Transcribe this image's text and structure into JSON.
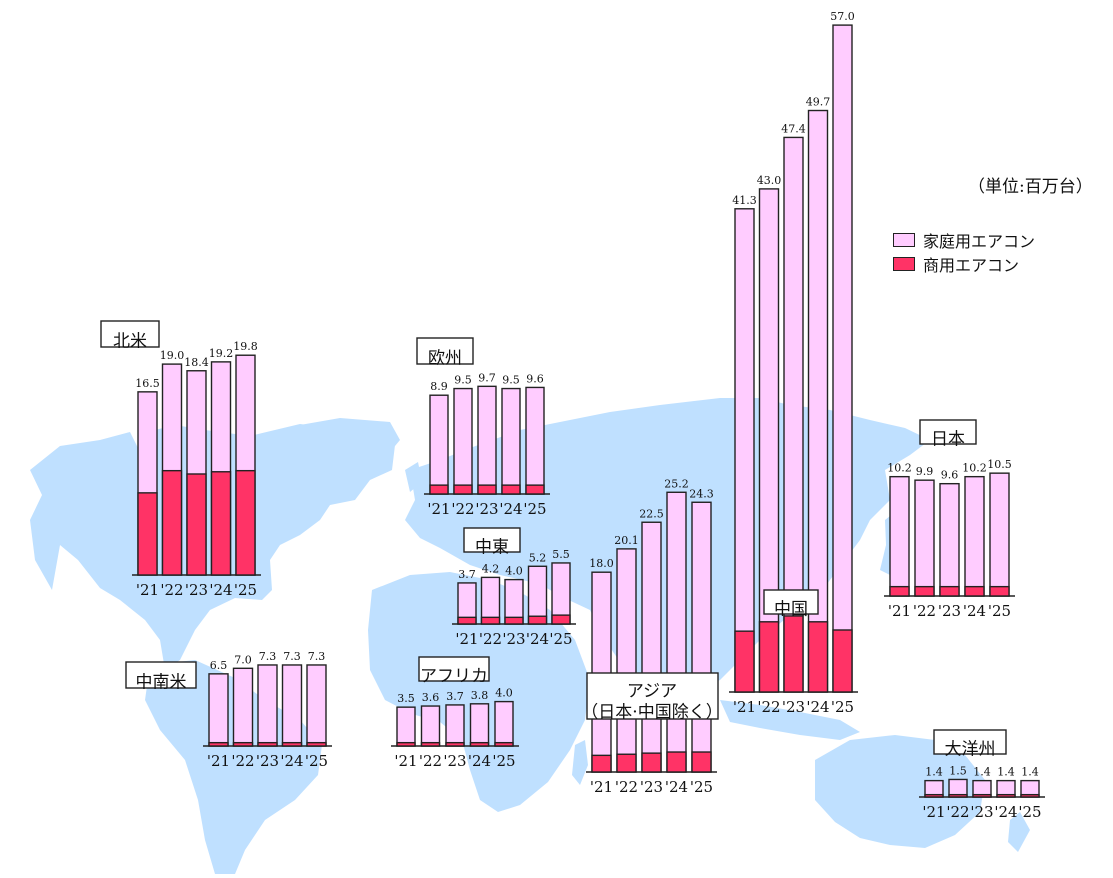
{
  "unit_label": "（単位:百万台）",
  "legend": [
    {
      "label": "家庭用エアコン",
      "color": "#ffccff"
    },
    {
      "label": "商用エアコン",
      "color": "#ff3366"
    }
  ],
  "colors": {
    "map": "#bfe0ff",
    "outline": "#222222"
  },
  "chart_data": [
    {
      "type": "bar",
      "stacked": true,
      "region": "北米",
      "categories": [
        "'21",
        "'22",
        "'23",
        "'24",
        "'25"
      ],
      "totals": [
        16.5,
        19.0,
        18.4,
        19.2,
        19.8
      ],
      "series": [
        {
          "name": "商用エアコン",
          "values": [
            7.4,
            9.4,
            9.1,
            9.3,
            9.4
          ]
        }
      ]
    },
    {
      "type": "bar",
      "stacked": true,
      "region": "中南米",
      "categories": [
        "'21",
        "'22",
        "'23",
        "'24",
        "'25"
      ],
      "totals": [
        6.5,
        7.0,
        7.3,
        7.3,
        7.3
      ],
      "series": [
        {
          "name": "商用エアコン",
          "values": [
            0.3,
            0.3,
            0.3,
            0.3,
            0.3
          ]
        }
      ]
    },
    {
      "type": "bar",
      "stacked": true,
      "region": "欧州",
      "categories": [
        "'21",
        "'22",
        "'23",
        "'24",
        "'25"
      ],
      "totals": [
        8.9,
        9.5,
        9.7,
        9.5,
        9.6
      ],
      "series": [
        {
          "name": "商用エアコン",
          "values": [
            0.8,
            0.8,
            0.8,
            0.8,
            0.8
          ]
        }
      ]
    },
    {
      "type": "bar",
      "stacked": true,
      "region": "中東",
      "categories": [
        "'21",
        "'22",
        "'23",
        "'24",
        "'25"
      ],
      "totals": [
        3.7,
        4.2,
        4.0,
        5.2,
        5.5
      ],
      "series": [
        {
          "name": "商用エアコン",
          "values": [
            0.6,
            0.6,
            0.6,
            0.7,
            0.8
          ]
        }
      ]
    },
    {
      "type": "bar",
      "stacked": true,
      "region": "アフリカ",
      "categories": [
        "'21",
        "'22",
        "'23",
        "'24",
        "'25"
      ],
      "totals": [
        3.5,
        3.6,
        3.7,
        3.8,
        4.0
      ],
      "series": [
        {
          "name": "商用エアコン",
          "values": [
            0.3,
            0.3,
            0.3,
            0.3,
            0.3
          ]
        }
      ]
    },
    {
      "type": "bar",
      "stacked": true,
      "region": "アジア（日本·中国除く）",
      "categories": [
        "'21",
        "'22",
        "'23",
        "'24",
        "'25"
      ],
      "totals": [
        18.0,
        20.1,
        22.5,
        25.2,
        24.3
      ],
      "series": [
        {
          "name": "商用エアコン",
          "values": [
            1.5,
            1.6,
            1.7,
            1.8,
            1.8
          ]
        }
      ]
    },
    {
      "type": "bar",
      "stacked": true,
      "region": "中国",
      "categories": [
        "'21",
        "'22",
        "'23",
        "'24",
        "'25"
      ],
      "totals": [
        41.3,
        43.0,
        47.4,
        49.7,
        57.0
      ],
      "series": [
        {
          "name": "商用エアコン",
          "values": [
            5.2,
            6.0,
            6.5,
            6.0,
            5.3
          ]
        }
      ]
    },
    {
      "type": "bar",
      "stacked": true,
      "region": "日本",
      "categories": [
        "'21",
        "'22",
        "'23",
        "'24",
        "'25"
      ],
      "totals": [
        10.2,
        9.9,
        9.6,
        10.2,
        10.5
      ],
      "series": [
        {
          "name": "商用エアコン",
          "values": [
            0.8,
            0.8,
            0.8,
            0.8,
            0.8
          ]
        }
      ]
    },
    {
      "type": "bar",
      "stacked": true,
      "region": "大洋州",
      "categories": [
        "'21",
        "'22",
        "'23",
        "'24",
        "'25"
      ],
      "totals": [
        1.4,
        1.5,
        1.4,
        1.4,
        1.4
      ],
      "series": [
        {
          "name": "商用エアコン",
          "values": [
            0.2,
            0.2,
            0.2,
            0.2,
            0.2
          ]
        }
      ]
    }
  ]
}
